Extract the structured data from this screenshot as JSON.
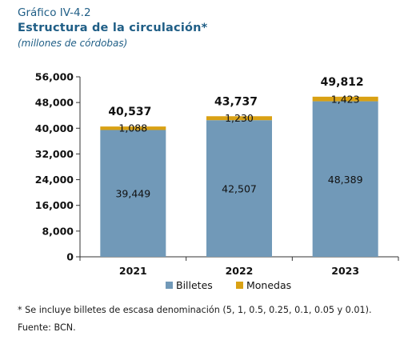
{
  "header": {
    "figure_label": "Gráfico IV-4.2",
    "title": "Estructura de la circulación*",
    "subtitle": "(millones de córdobas)"
  },
  "footer": {
    "note": "* Se incluye billetes de escasa denominación (5, 1, 0.5, 0.25, 0.1, 0.05 y 0.01).",
    "source": "Fuente: BCN."
  },
  "colors": {
    "billetes": "#7199b8",
    "monedas": "#d9a114",
    "axis": "#333333"
  },
  "chart_data": {
    "type": "bar",
    "stacked": true,
    "categories": [
      "2021",
      "2022",
      "2023"
    ],
    "series": [
      {
        "name": "Billetes",
        "values": [
          39449,
          42507,
          48389
        ]
      },
      {
        "name": "Monedas",
        "values": [
          1088,
          1230,
          1423
        ]
      }
    ],
    "series_labels": [
      [
        "39,449",
        "42,507",
        "48,389"
      ],
      [
        "1,088",
        "1,230",
        "1,423"
      ]
    ],
    "totals": [
      40537,
      43737,
      49812
    ],
    "total_labels": [
      "40,537",
      "43,737",
      "49,812"
    ],
    "ylim": [
      0,
      56000
    ],
    "yticks": [
      0,
      8000,
      16000,
      24000,
      32000,
      40000,
      48000,
      56000
    ],
    "ytick_labels": [
      "0",
      "8,000",
      "16,000",
      "24,000",
      "32,000",
      "40,000",
      "48,000",
      "56,000"
    ],
    "title": "Estructura de la circulación*",
    "xlabel": "",
    "ylabel": "",
    "grid": false,
    "legend_position": "bottom"
  }
}
